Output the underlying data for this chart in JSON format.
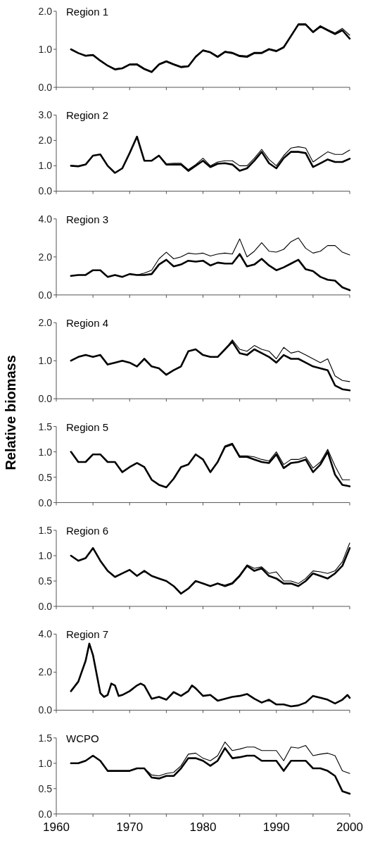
{
  "chart_data": [
    {
      "type": "line",
      "title": "Region 1",
      "x": [
        1962,
        1963,
        1964,
        1965,
        1966,
        1967,
        1968,
        1969,
        1970,
        1971,
        1972,
        1973,
        1974,
        1975,
        1976,
        1977,
        1978,
        1979,
        1980,
        1981,
        1982,
        1983,
        1984,
        1985,
        1986,
        1987,
        1988,
        1989,
        1990,
        1991,
        1992,
        1993,
        1994,
        1995,
        1996,
        1997,
        1998,
        1999,
        2000
      ],
      "xlim": [
        1960,
        2000
      ],
      "xticks": [
        {
          "value": 1960,
          "label": null
        },
        {
          "value": 1965,
          "label": null
        },
        {
          "value": 1970,
          "label": null
        },
        {
          "value": 1975,
          "label": null
        },
        {
          "value": 1980,
          "label": null
        },
        {
          "value": 1985,
          "label": null
        },
        {
          "value": 1990,
          "label": null
        },
        {
          "value": 1995,
          "label": null
        },
        {
          "value": 2000,
          "label": null
        }
      ],
      "ylim": [
        0,
        2
      ],
      "yticks": [
        {
          "value": 0,
          "label": "0.0"
        },
        {
          "value": 1,
          "label": "1.0"
        },
        {
          "value": 2,
          "label": "2.0"
        }
      ],
      "tick_labels": "y",
      "series": [
        {
          "color": "#000000",
          "values": [
            1.0,
            0.9,
            0.84,
            0.86,
            0.71,
            0.58,
            0.49,
            0.51,
            0.61,
            0.62,
            0.5,
            0.42,
            0.62,
            0.7,
            0.62,
            0.55,
            0.57,
            0.82,
            0.98,
            0.93,
            0.82,
            0.95,
            0.92,
            0.84,
            0.83,
            0.92,
            0.92,
            1.02,
            0.97,
            1.07,
            1.37,
            1.67,
            1.67,
            1.47,
            1.62,
            1.52,
            1.43,
            1.55,
            1.37
          ]
        },
        {
          "color": "#000000",
          "values": [
            1.0,
            0.9,
            0.83,
            0.85,
            0.7,
            0.57,
            0.47,
            0.5,
            0.6,
            0.6,
            0.48,
            0.4,
            0.6,
            0.68,
            0.6,
            0.53,
            0.55,
            0.8,
            0.97,
            0.92,
            0.8,
            0.93,
            0.9,
            0.82,
            0.8,
            0.9,
            0.9,
            1.0,
            0.95,
            1.05,
            1.35,
            1.65,
            1.65,
            1.45,
            1.6,
            1.5,
            1.4,
            1.5,
            1.28
          ]
        }
      ]
    },
    {
      "type": "line",
      "title": "Region 2",
      "x": [
        1962,
        1963,
        1964,
        1965,
        1966,
        1967,
        1968,
        1969,
        1970,
        1971,
        1972,
        1973,
        1974,
        1975,
        1976,
        1977,
        1978,
        1979,
        1980,
        1981,
        1982,
        1983,
        1984,
        1985,
        1986,
        1987,
        1988,
        1989,
        1990,
        1991,
        1992,
        1993,
        1994,
        1995,
        1996,
        1997,
        1998,
        1999,
        2000
      ],
      "xlim": [
        1960,
        2000
      ],
      "xticks": [
        {
          "value": 1960,
          "label": null
        },
        {
          "value": 1965,
          "label": null
        },
        {
          "value": 1970,
          "label": null
        },
        {
          "value": 1975,
          "label": null
        },
        {
          "value": 1980,
          "label": null
        },
        {
          "value": 1985,
          "label": null
        },
        {
          "value": 1990,
          "label": null
        },
        {
          "value": 1995,
          "label": null
        },
        {
          "value": 2000,
          "label": null
        }
      ],
      "ylim": [
        0,
        3
      ],
      "yticks": [
        {
          "value": 0,
          "label": "0.0"
        },
        {
          "value": 1,
          "label": "1.0"
        },
        {
          "value": 2,
          "label": "2.0"
        },
        {
          "value": 3,
          "label": "3.0"
        }
      ],
      "tick_labels": "y",
      "series": [
        {
          "color": "#000000",
          "values": [
            1.0,
            0.98,
            1.05,
            1.4,
            1.45,
            1.0,
            0.72,
            0.9,
            1.5,
            2.15,
            1.2,
            1.22,
            1.42,
            1.08,
            1.1,
            1.1,
            0.85,
            1.05,
            1.3,
            1.0,
            1.15,
            1.2,
            1.2,
            1.0,
            1.0,
            1.3,
            1.65,
            1.25,
            1.0,
            1.4,
            1.7,
            1.75,
            1.7,
            1.15,
            1.35,
            1.55,
            1.45,
            1.45,
            1.62
          ]
        },
        {
          "color": "#000000",
          "values": [
            1.0,
            0.98,
            1.05,
            1.4,
            1.45,
            1.0,
            0.72,
            0.9,
            1.5,
            2.15,
            1.2,
            1.2,
            1.4,
            1.05,
            1.05,
            1.05,
            0.8,
            1.0,
            1.2,
            0.95,
            1.08,
            1.1,
            1.05,
            0.8,
            0.9,
            1.2,
            1.55,
            1.1,
            0.9,
            1.3,
            1.55,
            1.55,
            1.5,
            0.95,
            1.1,
            1.25,
            1.15,
            1.15,
            1.28
          ]
        }
      ]
    },
    {
      "type": "line",
      "title": "Region 3",
      "x": [
        1962,
        1963,
        1964,
        1965,
        1966,
        1967,
        1968,
        1969,
        1970,
        1971,
        1972,
        1973,
        1974,
        1975,
        1976,
        1977,
        1978,
        1979,
        1980,
        1981,
        1982,
        1983,
        1984,
        1985,
        1986,
        1987,
        1988,
        1989,
        1990,
        1991,
        1992,
        1993,
        1994,
        1995,
        1996,
        1997,
        1998,
        1999,
        2000
      ],
      "xlim": [
        1960,
        2000
      ],
      "xticks": [
        {
          "value": 1960,
          "label": null
        },
        {
          "value": 1965,
          "label": null
        },
        {
          "value": 1970,
          "label": null
        },
        {
          "value": 1975,
          "label": null
        },
        {
          "value": 1980,
          "label": null
        },
        {
          "value": 1985,
          "label": null
        },
        {
          "value": 1990,
          "label": null
        },
        {
          "value": 1995,
          "label": null
        },
        {
          "value": 2000,
          "label": null
        }
      ],
      "ylim": [
        0,
        4
      ],
      "yticks": [
        {
          "value": 0,
          "label": "0.0"
        },
        {
          "value": 2,
          "label": "2.0"
        },
        {
          "value": 4,
          "label": "4.0"
        }
      ],
      "tick_labels": "y",
      "series": [
        {
          "color": "#000000",
          "values": [
            1.0,
            1.05,
            1.05,
            1.3,
            1.3,
            0.95,
            1.05,
            0.95,
            1.1,
            1.05,
            1.15,
            1.3,
            1.9,
            2.25,
            1.9,
            2.0,
            2.2,
            2.15,
            2.2,
            2.05,
            2.15,
            2.2,
            2.15,
            2.95,
            2.0,
            2.3,
            2.75,
            2.3,
            2.25,
            2.4,
            2.8,
            3.0,
            2.45,
            2.2,
            2.3,
            2.6,
            2.6,
            2.25,
            2.1
          ]
        },
        {
          "color": "#000000",
          "values": [
            1.0,
            1.05,
            1.05,
            1.3,
            1.3,
            0.95,
            1.05,
            0.95,
            1.1,
            1.05,
            1.05,
            1.1,
            1.6,
            1.85,
            1.5,
            1.6,
            1.8,
            1.75,
            1.8,
            1.55,
            1.7,
            1.65,
            1.65,
            2.15,
            1.5,
            1.6,
            1.9,
            1.55,
            1.3,
            1.45,
            1.65,
            1.85,
            1.35,
            1.25,
            0.95,
            0.8,
            0.75,
            0.4,
            0.25
          ]
        }
      ]
    },
    {
      "type": "line",
      "title": "Region 4",
      "ylabel": "Relative biomass",
      "x": [
        1962,
        1963,
        1964,
        1965,
        1966,
        1967,
        1968,
        1969,
        1970,
        1971,
        1972,
        1973,
        1974,
        1975,
        1976,
        1977,
        1978,
        1979,
        1980,
        1981,
        1982,
        1983,
        1984,
        1985,
        1986,
        1987,
        1988,
        1989,
        1990,
        1991,
        1992,
        1993,
        1994,
        1995,
        1996,
        1997,
        1998,
        1999,
        2000
      ],
      "xlim": [
        1960,
        2000
      ],
      "xticks": [
        {
          "value": 1960,
          "label": null
        },
        {
          "value": 1965,
          "label": null
        },
        {
          "value": 1970,
          "label": null
        },
        {
          "value": 1975,
          "label": null
        },
        {
          "value": 1980,
          "label": null
        },
        {
          "value": 1985,
          "label": null
        },
        {
          "value": 1990,
          "label": null
        },
        {
          "value": 1995,
          "label": null
        },
        {
          "value": 2000,
          "label": null
        }
      ],
      "ylim": [
        0,
        2
      ],
      "yticks": [
        {
          "value": 0,
          "label": "0.0"
        },
        {
          "value": 1,
          "label": "1.0"
        },
        {
          "value": 2,
          "label": "2.0"
        }
      ],
      "tick_labels": "y",
      "series": [
        {
          "color": "#000000",
          "values": [
            1.0,
            1.1,
            1.15,
            1.1,
            1.15,
            0.9,
            0.95,
            1.0,
            0.95,
            0.85,
            1.05,
            0.85,
            0.8,
            0.63,
            0.75,
            0.85,
            1.25,
            1.3,
            1.15,
            1.1,
            1.1,
            1.3,
            1.55,
            1.3,
            1.25,
            1.4,
            1.3,
            1.25,
            1.05,
            1.35,
            1.2,
            1.25,
            1.15,
            1.05,
            0.95,
            1.05,
            0.6,
            0.48,
            0.45
          ]
        },
        {
          "color": "#000000",
          "values": [
            1.0,
            1.1,
            1.15,
            1.1,
            1.15,
            0.9,
            0.95,
            1.0,
            0.95,
            0.85,
            1.05,
            0.85,
            0.8,
            0.63,
            0.75,
            0.85,
            1.25,
            1.3,
            1.15,
            1.1,
            1.1,
            1.3,
            1.5,
            1.2,
            1.15,
            1.3,
            1.2,
            1.1,
            0.95,
            1.15,
            1.05,
            1.05,
            0.95,
            0.85,
            0.8,
            0.75,
            0.35,
            0.25,
            0.22
          ]
        }
      ]
    },
    {
      "type": "line",
      "title": "Region 5",
      "x": [
        1962,
        1963,
        1964,
        1965,
        1966,
        1967,
        1968,
        1969,
        1970,
        1971,
        1972,
        1973,
        1974,
        1975,
        1976,
        1977,
        1978,
        1979,
        1980,
        1981,
        1982,
        1983,
        1984,
        1985,
        1986,
        1987,
        1988,
        1989,
        1990,
        1991,
        1992,
        1993,
        1994,
        1995,
        1996,
        1997,
        1998,
        1999,
        2000
      ],
      "xlim": [
        1960,
        2000
      ],
      "xticks": [
        {
          "value": 1960,
          "label": null
        },
        {
          "value": 1965,
          "label": null
        },
        {
          "value": 1970,
          "label": null
        },
        {
          "value": 1975,
          "label": null
        },
        {
          "value": 1980,
          "label": null
        },
        {
          "value": 1985,
          "label": null
        },
        {
          "value": 1990,
          "label": null
        },
        {
          "value": 1995,
          "label": null
        },
        {
          "value": 2000,
          "label": null
        }
      ],
      "ylim": [
        0,
        1.5
      ],
      "yticks": [
        {
          "value": 0,
          "label": "0.0"
        },
        {
          "value": 0.5,
          "label": "0.5"
        },
        {
          "value": 1,
          "label": "1.0"
        },
        {
          "value": 1.5,
          "label": "1.5"
        }
      ],
      "tick_labels": "y",
      "series": [
        {
          "color": "#000000",
          "values": [
            1.0,
            0.8,
            0.8,
            0.95,
            0.95,
            0.8,
            0.8,
            0.6,
            0.7,
            0.78,
            0.7,
            0.45,
            0.35,
            0.3,
            0.47,
            0.7,
            0.75,
            0.95,
            0.85,
            0.6,
            0.8,
            1.12,
            1.17,
            0.92,
            0.92,
            0.9,
            0.85,
            0.82,
            1.0,
            0.75,
            0.85,
            0.85,
            0.9,
            0.68,
            0.8,
            1.05,
            0.72,
            0.45,
            0.45
          ]
        },
        {
          "color": "#000000",
          "values": [
            1.0,
            0.8,
            0.8,
            0.95,
            0.95,
            0.8,
            0.8,
            0.6,
            0.7,
            0.78,
            0.7,
            0.45,
            0.35,
            0.3,
            0.47,
            0.7,
            0.75,
            0.95,
            0.85,
            0.6,
            0.8,
            1.1,
            1.15,
            0.9,
            0.9,
            0.85,
            0.8,
            0.78,
            0.95,
            0.68,
            0.78,
            0.8,
            0.85,
            0.6,
            0.75,
            1.0,
            0.55,
            0.35,
            0.32
          ]
        }
      ]
    },
    {
      "type": "line",
      "title": "Region 6",
      "x": [
        1962,
        1963,
        1964,
        1965,
        1966,
        1967,
        1968,
        1969,
        1970,
        1971,
        1972,
        1973,
        1974,
        1975,
        1976,
        1977,
        1978,
        1979,
        1980,
        1981,
        1982,
        1983,
        1984,
        1985,
        1986,
        1987,
        1988,
        1989,
        1990,
        1991,
        1992,
        1993,
        1994,
        1995,
        1996,
        1997,
        1998,
        1999,
        2000
      ],
      "xlim": [
        1960,
        2000
      ],
      "xticks": [
        {
          "value": 1960,
          "label": null
        },
        {
          "value": 1965,
          "label": null
        },
        {
          "value": 1970,
          "label": null
        },
        {
          "value": 1975,
          "label": null
        },
        {
          "value": 1980,
          "label": null
        },
        {
          "value": 1985,
          "label": null
        },
        {
          "value": 1990,
          "label": null
        },
        {
          "value": 1995,
          "label": null
        },
        {
          "value": 2000,
          "label": null
        }
      ],
      "ylim": [
        0,
        1.5
      ],
      "yticks": [
        {
          "value": 0,
          "label": "0.0"
        },
        {
          "value": 0.5,
          "label": "0.5"
        },
        {
          "value": 1,
          "label": "1.0"
        },
        {
          "value": 1.5,
          "label": "1.5"
        }
      ],
      "tick_labels": "y",
      "series": [
        {
          "color": "#000000",
          "values": [
            1.0,
            0.9,
            0.95,
            1.15,
            0.9,
            0.7,
            0.58,
            0.65,
            0.72,
            0.6,
            0.7,
            0.6,
            0.55,
            0.5,
            0.4,
            0.26,
            0.36,
            0.5,
            0.45,
            0.4,
            0.45,
            0.42,
            0.47,
            0.62,
            0.82,
            0.75,
            0.78,
            0.65,
            0.68,
            0.5,
            0.5,
            0.45,
            0.55,
            0.7,
            0.68,
            0.65,
            0.7,
            0.88,
            1.25
          ]
        },
        {
          "color": "#000000",
          "values": [
            1.0,
            0.9,
            0.95,
            1.15,
            0.9,
            0.7,
            0.58,
            0.65,
            0.72,
            0.6,
            0.7,
            0.6,
            0.55,
            0.5,
            0.4,
            0.25,
            0.35,
            0.5,
            0.45,
            0.4,
            0.45,
            0.4,
            0.45,
            0.6,
            0.8,
            0.7,
            0.75,
            0.6,
            0.55,
            0.45,
            0.45,
            0.4,
            0.5,
            0.65,
            0.6,
            0.55,
            0.65,
            0.8,
            1.15
          ]
        }
      ]
    },
    {
      "type": "line",
      "title": "Region 7",
      "xlim": [
        1960,
        2000
      ],
      "xticks": [
        {
          "value": 1960,
          "label": null
        },
        {
          "value": 1965,
          "label": null
        },
        {
          "value": 1970,
          "label": null
        },
        {
          "value": 1975,
          "label": null
        },
        {
          "value": 1980,
          "label": null
        },
        {
          "value": 1985,
          "label": null
        },
        {
          "value": 1990,
          "label": null
        },
        {
          "value": 1995,
          "label": null
        },
        {
          "value": 2000,
          "label": null
        }
      ],
      "ylim": [
        0,
        4
      ],
      "yticks": [
        {
          "value": 0,
          "label": "0.0"
        },
        {
          "value": 2,
          "label": "2.0"
        },
        {
          "value": 4,
          "label": "4.0"
        }
      ],
      "tick_labels": "y",
      "series": [
        {
          "color": "#000000",
          "x": [
            1962,
            1963,
            1964,
            1964.5,
            1965,
            1966,
            1966.5,
            1967,
            1967.5,
            1968,
            1968.5,
            1969,
            1970,
            1971,
            1971.5,
            1972,
            1973,
            1974,
            1975,
            1976,
            1977,
            1978,
            1978.5,
            1979,
            1980,
            1981,
            1982,
            1983,
            1984,
            1985,
            1986,
            1987,
            1988,
            1989,
            1990,
            1991,
            1992,
            1993,
            1994,
            1995,
            1996,
            1997,
            1998,
            1999,
            1999.7,
            2000
          ],
          "values": [
            1.0,
            1.5,
            2.6,
            3.5,
            2.9,
            0.9,
            0.7,
            0.8,
            1.4,
            1.3,
            0.75,
            0.8,
            1.0,
            1.3,
            1.4,
            1.3,
            0.6,
            0.7,
            0.55,
            0.95,
            0.75,
            1.0,
            1.3,
            1.15,
            0.75,
            0.8,
            0.5,
            0.6,
            0.7,
            0.75,
            0.85,
            0.6,
            0.4,
            0.55,
            0.3,
            0.3,
            0.2,
            0.25,
            0.4,
            0.75,
            0.65,
            0.55,
            0.35,
            0.55,
            0.8,
            0.65
          ]
        }
      ]
    },
    {
      "type": "line",
      "title": "WCPO",
      "x": [
        1962,
        1963,
        1964,
        1965,
        1966,
        1967,
        1968,
        1969,
        1970,
        1971,
        1972,
        1973,
        1974,
        1975,
        1976,
        1977,
        1978,
        1979,
        1980,
        1981,
        1982,
        1983,
        1984,
        1985,
        1986,
        1987,
        1988,
        1989,
        1990,
        1991,
        1992,
        1993,
        1994,
        1995,
        1996,
        1997,
        1998,
        1999,
        2000
      ],
      "xlim": [
        1960,
        2000
      ],
      "xticks": [
        {
          "value": 1960,
          "label": "1960"
        },
        {
          "value": 1965,
          "label": null
        },
        {
          "value": 1970,
          "label": "1970"
        },
        {
          "value": 1975,
          "label": null
        },
        {
          "value": 1980,
          "label": "1980"
        },
        {
          "value": 1985,
          "label": null
        },
        {
          "value": 1990,
          "label": "1990"
        },
        {
          "value": 1995,
          "label": null
        },
        {
          "value": 2000,
          "label": "2000"
        }
      ],
      "ylim": [
        0,
        1.5
      ],
      "yticks": [
        {
          "value": 0,
          "label": "0.0"
        },
        {
          "value": 0.5,
          "label": "0.5"
        },
        {
          "value": 1,
          "label": "1.0"
        },
        {
          "value": 1.5,
          "label": "1.5"
        }
      ],
      "series": [
        {
          "color": "#000000",
          "values": [
            1.0,
            1.0,
            1.05,
            1.15,
            1.05,
            0.85,
            0.85,
            0.85,
            0.85,
            0.9,
            0.9,
            0.77,
            0.75,
            0.8,
            0.82,
            0.95,
            1.18,
            1.2,
            1.1,
            1.05,
            1.15,
            1.42,
            1.25,
            1.28,
            1.32,
            1.32,
            1.25,
            1.25,
            1.25,
            1.05,
            1.32,
            1.3,
            1.35,
            1.15,
            1.18,
            1.2,
            1.15,
            0.85,
            0.8
          ]
        },
        {
          "color": "#000000",
          "values": [
            1.0,
            1.0,
            1.05,
            1.15,
            1.05,
            0.85,
            0.85,
            0.85,
            0.85,
            0.9,
            0.9,
            0.72,
            0.7,
            0.75,
            0.75,
            0.9,
            1.1,
            1.1,
            1.05,
            0.95,
            1.05,
            1.3,
            1.1,
            1.12,
            1.15,
            1.15,
            1.05,
            1.05,
            1.05,
            0.85,
            1.05,
            1.05,
            1.05,
            0.9,
            0.9,
            0.85,
            0.75,
            0.45,
            0.4
          ]
        }
      ]
    }
  ]
}
